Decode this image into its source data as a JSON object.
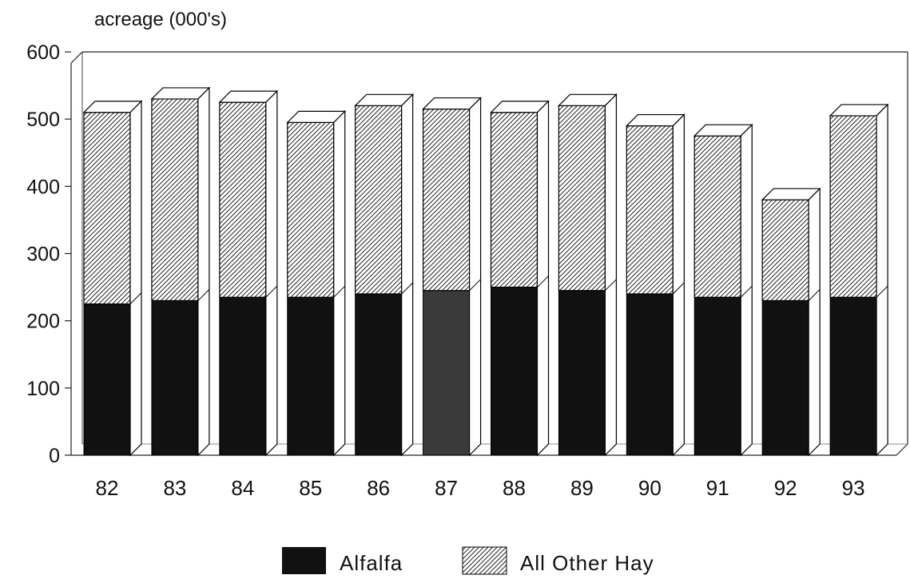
{
  "chart_data": {
    "type": "bar",
    "stacked": true,
    "three_d": true,
    "ylabel": "acreage (000's)",
    "ylim": [
      0,
      600
    ],
    "yticks": [
      "0",
      "100",
      "200",
      "300",
      "400",
      "500",
      "600"
    ],
    "categories": [
      "82",
      "83",
      "84",
      "85",
      "86",
      "87",
      "88",
      "89",
      "90",
      "91",
      "92",
      "93"
    ],
    "series": [
      {
        "name": "Alfalfa",
        "values": [
          225,
          230,
          235,
          235,
          240,
          245,
          250,
          245,
          240,
          235,
          230,
          235
        ]
      },
      {
        "name": "All Other Hay",
        "values": [
          285,
          300,
          290,
          260,
          280,
          270,
          260,
          275,
          250,
          240,
          150,
          270
        ]
      }
    ],
    "legend_position": "bottom-center",
    "grid": false,
    "colors": {
      "alfalfa": "#111111",
      "alfalfa_highlight": "#3a3a3a",
      "other_hay_fill": "#ffffff",
      "other_hay_hatch": "#222222"
    }
  }
}
